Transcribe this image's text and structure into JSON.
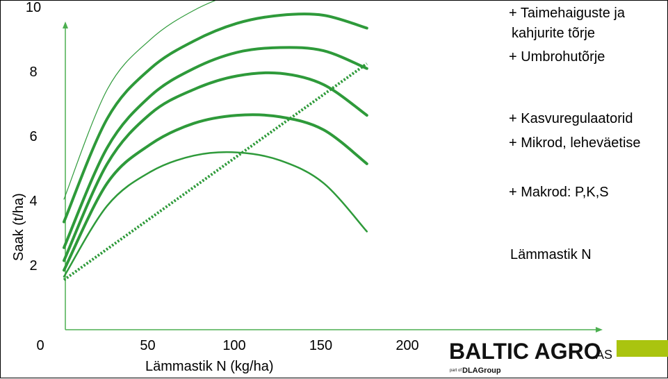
{
  "chart_data": {
    "type": "line",
    "title": "",
    "xlabel": "Lämmastik N (kg/ha)",
    "ylabel": "Saak (t/ha)",
    "xlim": [
      0,
      200
    ],
    "ylim": [
      0,
      10
    ],
    "xticks": [
      "0",
      "50",
      "100",
      "150",
      "200"
    ],
    "yticks": [
      "2",
      "4",
      "6",
      "8",
      "10"
    ],
    "grid": false,
    "legend": "right-inline labels",
    "colors": {
      "curve": "#2e9a3a",
      "axis": "#4caf50"
    },
    "series": [
      {
        "name": "+ Taimehaiguste ja kahjurite tõrje",
        "x": [
          0,
          25,
          50,
          75,
          100,
          125,
          150,
          175
        ],
        "values": [
          4.0,
          7.4,
          8.95,
          9.85,
          10.4,
          10.75,
          10.82,
          10.65
        ]
      },
      {
        "name": "+ Umbrohutõrje",
        "x": [
          0,
          25,
          50,
          75,
          100,
          125,
          150,
          175
        ],
        "values": [
          3.3,
          6.5,
          8.05,
          8.9,
          9.45,
          9.7,
          9.7,
          9.3
        ]
      },
      {
        "name": "+ Kasvuregulaatorid",
        "x": [
          0,
          25,
          50,
          75,
          100,
          125,
          150,
          175
        ],
        "values": [
          2.5,
          5.6,
          7.2,
          8.05,
          8.55,
          8.7,
          8.6,
          8.05
        ]
      },
      {
        "name": "+ Mikrod, leheväetised",
        "x": [
          0,
          25,
          50,
          75,
          100,
          125,
          150,
          175
        ],
        "values": [
          2.1,
          5.1,
          6.65,
          7.4,
          7.82,
          7.9,
          7.55,
          6.6
        ]
      },
      {
        "name": "+ Makrod: P,K,S",
        "x": [
          0,
          25,
          50,
          75,
          100,
          125,
          150,
          175
        ],
        "values": [
          1.8,
          4.5,
          5.7,
          6.35,
          6.6,
          6.55,
          6.15,
          5.1
        ]
      },
      {
        "name": "Lämmastik N",
        "x": [
          0,
          25,
          50,
          75,
          100,
          125,
          150,
          175
        ],
        "values": [
          1.6,
          3.8,
          4.85,
          5.35,
          5.45,
          5.2,
          4.5,
          3.0
        ]
      },
      {
        "name": "",
        "style": "dotted",
        "x": [
          0,
          175
        ],
        "values": [
          1.5,
          8.2
        ]
      }
    ],
    "series_labels": [
      {
        "lines": [
          "+ Taimehaiguste ja",
          "kahjurite tõrje"
        ]
      },
      {
        "lines": [
          "+ Umbrohutõrje"
        ]
      },
      {
        "lines": [
          "+ Kasvuregulaatorid"
        ]
      },
      {
        "lines": [
          "+ Mikrod, leheväetise"
        ]
      },
      {
        "lines": [
          "+ Makrod: P,K,S"
        ]
      },
      {
        "lines": [
          "Lämmastik N"
        ]
      }
    ]
  },
  "logo": {
    "main": "BALTIC AGRO",
    "suffix": "AS",
    "part_of": "part of",
    "group": "DLAGroup",
    "accent_color": "#aac40f"
  }
}
